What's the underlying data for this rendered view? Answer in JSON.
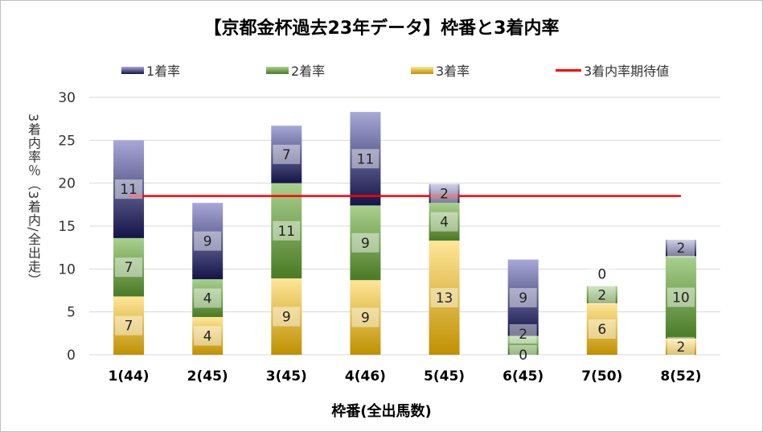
{
  "chart_data": {
    "type": "bar",
    "stacked": true,
    "title": "【京都金杯過去23年データ】枠番と3着内率",
    "xlabel": "枠番(全出馬数)",
    "ylabel": "3着内率％（3着内/全出走）",
    "ylim": [
      0,
      30
    ],
    "yticks": [
      0,
      5,
      10,
      15,
      20,
      25,
      30
    ],
    "grid": true,
    "legend_position": "top",
    "categories": [
      "1(44)",
      "2(45)",
      "3(45)",
      "4(46)",
      "5(45)",
      "6(45)",
      "7(50)",
      "8(52)"
    ],
    "series": [
      {
        "name": "3着率",
        "color_top": "#ffe699",
        "color_bottom": "#bf9000",
        "values": [
          6.8,
          4.4,
          8.9,
          8.7,
          13.3,
          0,
          6.0,
          1.9
        ],
        "labels": [
          "7",
          "4",
          "9",
          "9",
          "13",
          "0",
          "6",
          "2"
        ]
      },
      {
        "name": "2着率",
        "color_top": "#a9d18e",
        "color_bottom": "#4a7a25",
        "values": [
          6.8,
          4.4,
          11.1,
          8.7,
          4.4,
          2.2,
          2.0,
          9.6
        ],
        "labels": [
          "7",
          "4",
          "11",
          "9",
          "4",
          "2",
          "2",
          "10"
        ]
      },
      {
        "name": "1着率",
        "color_top": "#a8a8d8",
        "color_bottom": "#141448",
        "values": [
          11.4,
          8.9,
          6.7,
          10.9,
          2.2,
          8.9,
          0,
          1.9
        ],
        "labels": [
          "11",
          "9",
          "7",
          "11",
          "2",
          "9",
          "0",
          "2"
        ]
      }
    ],
    "line": {
      "name": "3着内率期待値",
      "value": 18.5,
      "color": "#ff0000"
    },
    "legend": [
      "1着率",
      "2着率",
      "3着率",
      "3着内率期待値"
    ]
  }
}
